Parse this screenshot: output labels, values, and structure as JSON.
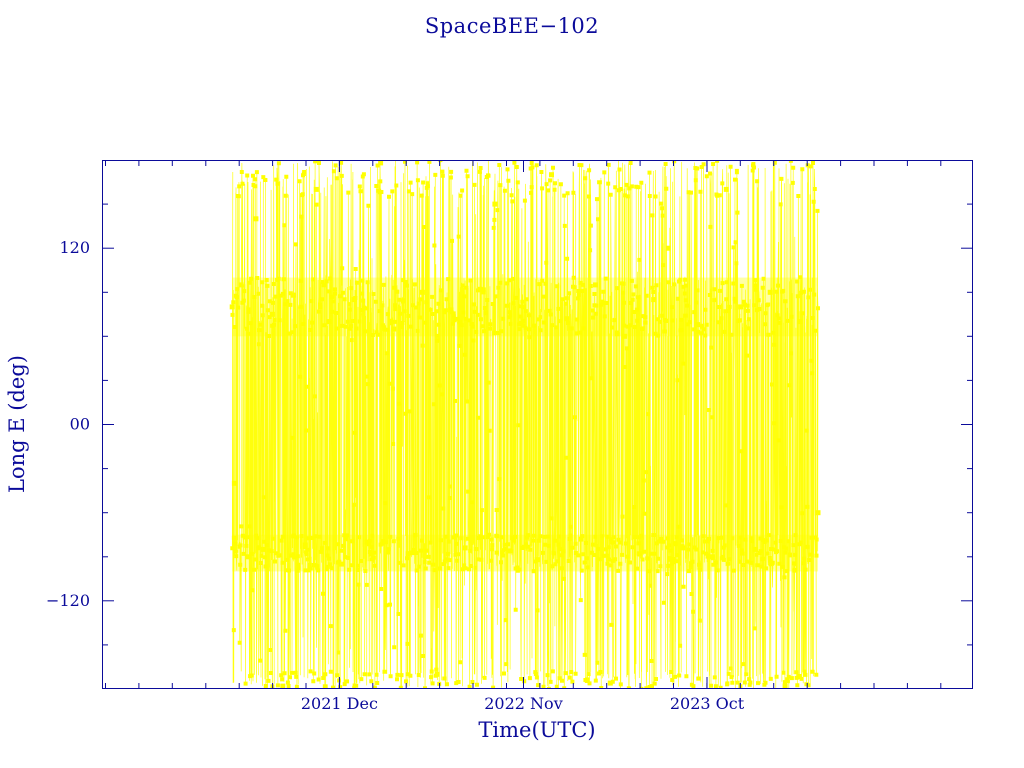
{
  "chart_data": {
    "type": "scatter",
    "title": "SpaceBEE−102",
    "xlabel": "Time(UTC)",
    "ylabel": "Long E (deg)",
    "x_tick_labels": [
      "2021 Dec",
      "2022 Nov",
      "2023 Oct"
    ],
    "x_tick_dates": [
      "2021-12-01",
      "2022-11-01",
      "2023-10-01"
    ],
    "xlim": [
      "2020-09-25",
      "2025-01-27"
    ],
    "ylim": [
      -180,
      180
    ],
    "y_ticks": [
      -120,
      0,
      120
    ],
    "y_tick_labels": [
      "−120",
      "00",
      "120"
    ],
    "data_range": [
      "2021-05-20",
      "2024-04-20"
    ],
    "line_style": "lines connecting consecutive points",
    "marker": "small filled square",
    "dense_bands": [
      {
        "name": "upper band",
        "range": [
          60,
          100
        ]
      },
      {
        "name": "lower band",
        "range": [
          -100,
          -75
        ]
      }
    ],
    "series": [
      {
        "color": "#ffff00",
        "x": [
          "2021-05-20",
          "2021-05-24",
          "2021-06-05",
          "2021-06-18",
          "2021-07-02",
          "2021-07-16",
          "2021-08-01",
          "2021-08-20",
          "2021-09-08",
          "2021-09-30",
          "2021-10-20",
          "2021-11-12",
          "2021-12-05",
          "2021-12-28",
          "2022-01-20",
          "2022-02-14",
          "2022-03-10",
          "2022-04-05",
          "2022-05-01",
          "2022-05-28",
          "2022-06-22",
          "2022-07-18",
          "2022-08-14",
          "2022-09-10",
          "2022-10-06",
          "2022-11-01",
          "2022-11-26",
          "2022-12-22",
          "2023-01-18",
          "2023-02-14",
          "2023-03-12",
          "2023-04-08",
          "2023-05-04",
          "2023-05-31",
          "2023-06-26",
          "2023-07-22",
          "2023-08-18",
          "2023-09-14",
          "2023-10-10",
          "2023-11-05",
          "2023-12-01",
          "2023-12-28",
          "2024-01-24",
          "2024-02-20",
          "2024-03-18",
          "2024-04-20"
        ],
        "y": [
          80,
          -40,
          95,
          -90,
          140,
          -85,
          75,
          -178,
          88,
          -82,
          160,
          70,
          -95,
          85,
          -80,
          178,
          65,
          -88,
          90,
          -170,
          78,
          -84,
          92,
          150,
          -86,
          80,
          -92,
          170,
          72,
          -78,
          95,
          -176,
          60,
          -88,
          85,
          120,
          -84,
          68,
          -90,
          160,
          80,
          -85,
          90,
          -178,
          70,
          -60
        ]
      }
    ]
  }
}
